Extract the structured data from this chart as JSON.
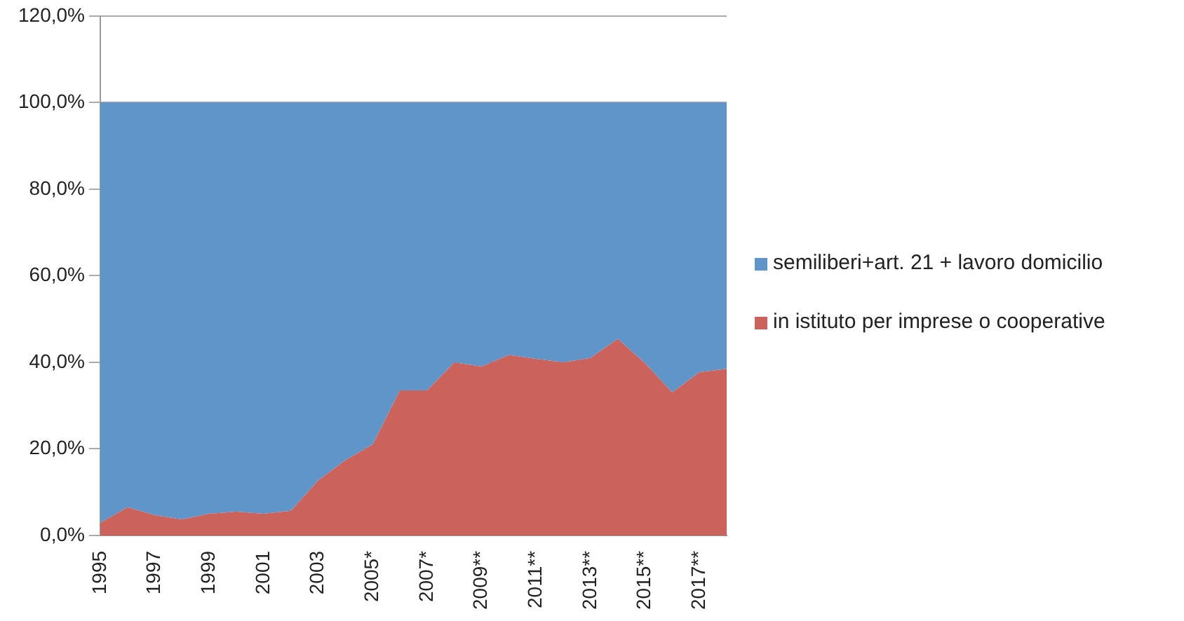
{
  "chart_data": {
    "type": "area",
    "stacked": true,
    "categories": [
      "1995",
      null,
      "1997",
      null,
      "1999",
      null,
      "2001",
      null,
      "2003",
      null,
      "2005*",
      null,
      "2007*",
      null,
      "2009**",
      null,
      "2011**",
      null,
      "2013**",
      null,
      "2015**",
      null,
      "2017**",
      null
    ],
    "series": [
      {
        "name": "in istituto per imprese o cooperative",
        "color": "#cb625b",
        "values": [
          2.9,
          6.5,
          4.7,
          3.7,
          5,
          5.5,
          5,
          5.7,
          12.7,
          17.4,
          21,
          33.5,
          33.5,
          40,
          39,
          41.7,
          40.8,
          40,
          41,
          45.4,
          39.8,
          33,
          37.7,
          38.5
        ]
      },
      {
        "name": "semiliberi+art. 21 + lavoro domicilio",
        "color": "#6095c9",
        "values": [
          97.1,
          93.5,
          95.3,
          96.3,
          95,
          94.5,
          95,
          94.3,
          87.3,
          82.6,
          79,
          66.5,
          66.5,
          60,
          61,
          58.3,
          59.2,
          60,
          59,
          54.6,
          60.2,
          67,
          62.3,
          61.5
        ]
      }
    ],
    "ylim": [
      0,
      120
    ],
    "yticks": [
      {
        "value": 0,
        "label": "0,0%"
      },
      {
        "value": 20,
        "label": "20,0%"
      },
      {
        "value": 40,
        "label": "40,0%"
      },
      {
        "value": 60,
        "label": "60,0%"
      },
      {
        "value": 80,
        "label": "80,0%"
      },
      {
        "value": 100,
        "label": "100,0%"
      },
      {
        "value": 120,
        "label": "120,0%"
      }
    ],
    "grid": "y",
    "legend": "right"
  }
}
